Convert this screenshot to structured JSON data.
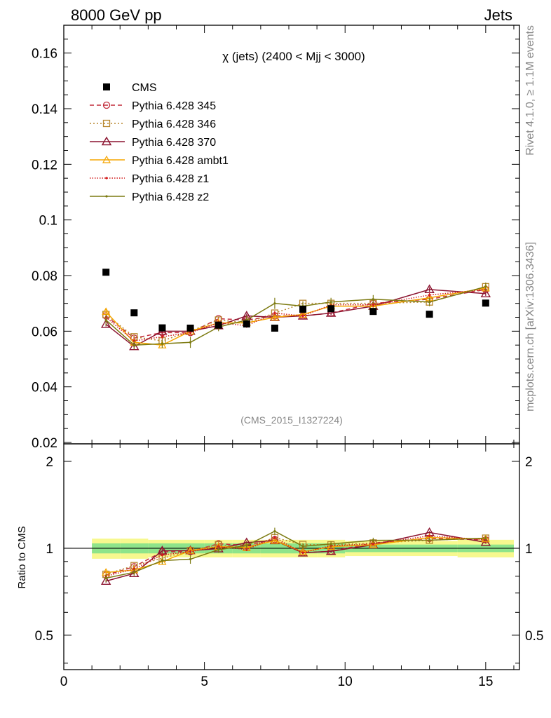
{
  "header": {
    "left": "8000 GeV pp",
    "right": "Jets",
    "side_rivet": "Rivet 4.1.0, ≥ 1.1M events",
    "side_mcplots": "mcplots.cern.ch [arXiv:1306.3436]"
  },
  "chart_data": {
    "type": "line",
    "title": "χ (jets) (2400 < Mjj < 3000)",
    "watermark": "(CMS_2015_I1327224)",
    "xlim": [
      0,
      16.2
    ],
    "ylim": [
      0.0195,
      0.17
    ],
    "ratio_ylim": [
      0.38,
      2.3
    ],
    "ratio_ylabel": "Ratio to CMS",
    "x_ticks": [
      "0",
      "5",
      "10",
      "15"
    ],
    "y_ticks": [
      "0.02",
      "0.04",
      "0.06",
      "0.08",
      "0.1",
      "0.12",
      "0.14",
      "0.16"
    ],
    "ratio_ticks": [
      "0.5",
      "1",
      "2"
    ],
    "x": [
      1.5,
      2.5,
      3.5,
      4.5,
      5.5,
      6.5,
      7.5,
      8.5,
      9.5,
      11,
      13,
      15
    ],
    "data": {
      "name": "CMS",
      "values": [
        0.0812,
        0.0666,
        0.0612,
        0.0611,
        0.0622,
        0.0626,
        0.0611,
        0.0679,
        0.0681,
        0.0671,
        0.0661,
        0.0701
      ],
      "band_inner": [
        0.04,
        0.04,
        0.04,
        0.04,
        0.04,
        0.04,
        0.04,
        0.04,
        0.04,
        0.03,
        0.03,
        0.03
      ],
      "band_outer": [
        0.08,
        0.08,
        0.07,
        0.07,
        0.07,
        0.07,
        0.07,
        0.07,
        0.07,
        0.06,
        0.06,
        0.07
      ]
    },
    "series": [
      {
        "name": "Pythia 6.428 345",
        "color": "#c22b3a",
        "dash": "6,4",
        "marker": "circle",
        "values": [
          0.0655,
          0.0575,
          0.0595,
          0.0595,
          0.0645,
          0.064,
          0.0655,
          0.0655,
          0.0665,
          0.07,
          0.0715,
          0.075
        ],
        "errors": [
          0.0008,
          0.0008,
          0.0008,
          0.0008,
          0.0008,
          0.0008,
          0.0008,
          0.0008,
          0.0008,
          0.0008,
          0.0008,
          0.0008
        ]
      },
      {
        "name": "Pythia 6.428 346",
        "color": "#b8872e",
        "dash": "2,3",
        "marker": "square",
        "values": [
          0.066,
          0.058,
          0.0565,
          0.06,
          0.064,
          0.063,
          0.0665,
          0.07,
          0.07,
          0.07,
          0.0705,
          0.076
        ],
        "errors": [
          0.0008,
          0.0008,
          0.0008,
          0.0008,
          0.0008,
          0.0008,
          0.0008,
          0.0008,
          0.0008,
          0.0008,
          0.0008,
          0.0008
        ]
      },
      {
        "name": "Pythia 6.428 370",
        "color": "#8b1430",
        "dash": "",
        "marker": "triangle",
        "values": [
          0.0625,
          0.0545,
          0.06,
          0.06,
          0.062,
          0.0655,
          0.065,
          0.0655,
          0.0665,
          0.069,
          0.075,
          0.0735
        ],
        "errors": [
          0.0008,
          0.0008,
          0.0008,
          0.0008,
          0.0008,
          0.0008,
          0.0008,
          0.0008,
          0.0008,
          0.0008,
          0.0008,
          0.0008
        ]
      },
      {
        "name": "Pythia 6.428 ambt1",
        "color": "#f5a500",
        "dash": "",
        "marker": "triangle-open",
        "values": [
          0.067,
          0.056,
          0.055,
          0.06,
          0.063,
          0.063,
          0.065,
          0.066,
          0.069,
          0.069,
          0.072,
          0.0755
        ],
        "errors": [
          0.001,
          0.001,
          0.001,
          0.001,
          0.001,
          0.001,
          0.001,
          0.001,
          0.001,
          0.001,
          0.001,
          0.001
        ]
      },
      {
        "name": "Pythia 6.428 z1",
        "color": "#d21e1e",
        "dash": "1.5,2",
        "marker": "dot",
        "values": [
          0.065,
          0.0565,
          0.058,
          0.0595,
          0.063,
          0.062,
          0.0665,
          0.0655,
          0.0695,
          0.0695,
          0.073,
          0.075
        ],
        "errors": [
          0.0008,
          0.0008,
          0.0008,
          0.0008,
          0.0008,
          0.0008,
          0.0008,
          0.0008,
          0.0008,
          0.0008,
          0.0008,
          0.0008
        ]
      },
      {
        "name": "Pythia 6.428 z2",
        "color": "#7c7a10",
        "dash": "",
        "marker": "dot",
        "values": [
          0.064,
          0.055,
          0.0555,
          0.056,
          0.0615,
          0.064,
          0.07,
          0.069,
          0.0705,
          0.0715,
          0.0705,
          0.076
        ],
        "errors": [
          0.002,
          0.0015,
          0.0015,
          0.002,
          0.0015,
          0.0015,
          0.002,
          0.0015,
          0.0015,
          0.0015,
          0.0015,
          0.0015
        ]
      }
    ]
  }
}
